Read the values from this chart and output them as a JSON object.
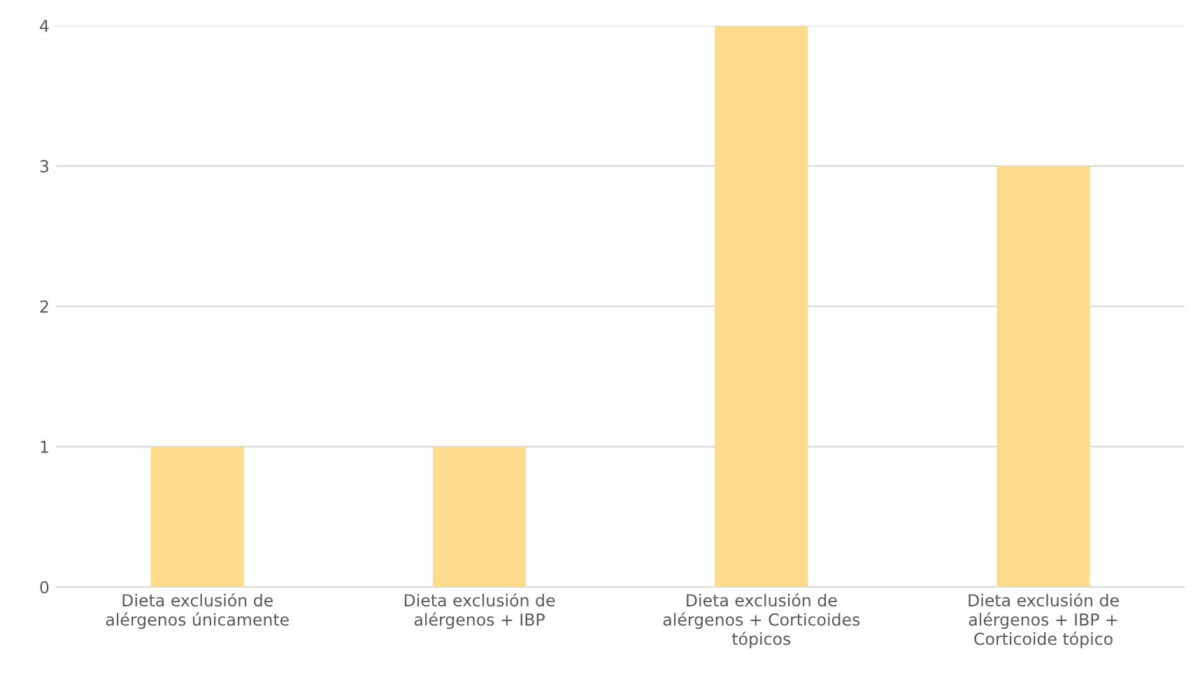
{
  "chart_data": {
    "type": "bar",
    "categories": [
      "Dieta exclusión de alérgenos únicamente",
      "Dieta exclusión de alérgenos + IBP",
      "Dieta exclusión de alérgenos + Corticoides tópicos",
      "Dieta exclusión de alérgenos + IBP + Corticoide tópico"
    ],
    "values": [
      1,
      1,
      4,
      3
    ],
    "color": "#fcdc8c",
    "ylim": [
      0,
      4
    ],
    "yticks": [
      0,
      1,
      2,
      3,
      4
    ],
    "grid": "y"
  }
}
